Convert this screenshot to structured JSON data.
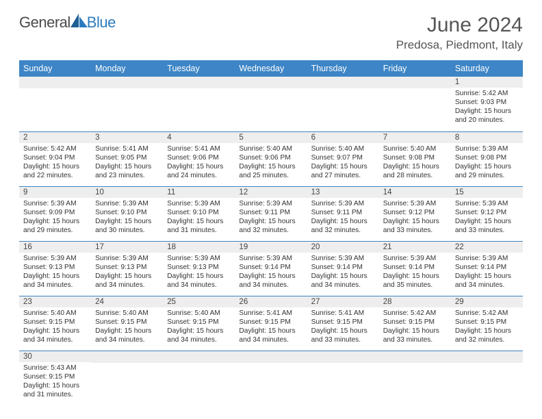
{
  "brand": {
    "name1": "General",
    "name2": "Blue"
  },
  "title": "June 2024",
  "location": "Predosa, Piedmont, Italy",
  "colors": {
    "header_bg": "#3d85c6",
    "daynum_bg": "#eeeeee",
    "row_border": "#3d85c6",
    "brand_blue": "#2b7bbf"
  },
  "weekdays": [
    "Sunday",
    "Monday",
    "Tuesday",
    "Wednesday",
    "Thursday",
    "Friday",
    "Saturday"
  ],
  "weeks": [
    [
      null,
      null,
      null,
      null,
      null,
      null,
      {
        "d": "1",
        "sr": "5:42 AM",
        "ss": "9:03 PM",
        "dl": "15 hours and 20 minutes."
      }
    ],
    [
      {
        "d": "2",
        "sr": "5:42 AM",
        "ss": "9:04 PM",
        "dl": "15 hours and 22 minutes."
      },
      {
        "d": "3",
        "sr": "5:41 AM",
        "ss": "9:05 PM",
        "dl": "15 hours and 23 minutes."
      },
      {
        "d": "4",
        "sr": "5:41 AM",
        "ss": "9:06 PM",
        "dl": "15 hours and 24 minutes."
      },
      {
        "d": "5",
        "sr": "5:40 AM",
        "ss": "9:06 PM",
        "dl": "15 hours and 25 minutes."
      },
      {
        "d": "6",
        "sr": "5:40 AM",
        "ss": "9:07 PM",
        "dl": "15 hours and 27 minutes."
      },
      {
        "d": "7",
        "sr": "5:40 AM",
        "ss": "9:08 PM",
        "dl": "15 hours and 28 minutes."
      },
      {
        "d": "8",
        "sr": "5:39 AM",
        "ss": "9:08 PM",
        "dl": "15 hours and 29 minutes."
      }
    ],
    [
      {
        "d": "9",
        "sr": "5:39 AM",
        "ss": "9:09 PM",
        "dl": "15 hours and 29 minutes."
      },
      {
        "d": "10",
        "sr": "5:39 AM",
        "ss": "9:10 PM",
        "dl": "15 hours and 30 minutes."
      },
      {
        "d": "11",
        "sr": "5:39 AM",
        "ss": "9:10 PM",
        "dl": "15 hours and 31 minutes."
      },
      {
        "d": "12",
        "sr": "5:39 AM",
        "ss": "9:11 PM",
        "dl": "15 hours and 32 minutes."
      },
      {
        "d": "13",
        "sr": "5:39 AM",
        "ss": "9:11 PM",
        "dl": "15 hours and 32 minutes."
      },
      {
        "d": "14",
        "sr": "5:39 AM",
        "ss": "9:12 PM",
        "dl": "15 hours and 33 minutes."
      },
      {
        "d": "15",
        "sr": "5:39 AM",
        "ss": "9:12 PM",
        "dl": "15 hours and 33 minutes."
      }
    ],
    [
      {
        "d": "16",
        "sr": "5:39 AM",
        "ss": "9:13 PM",
        "dl": "15 hours and 34 minutes."
      },
      {
        "d": "17",
        "sr": "5:39 AM",
        "ss": "9:13 PM",
        "dl": "15 hours and 34 minutes."
      },
      {
        "d": "18",
        "sr": "5:39 AM",
        "ss": "9:13 PM",
        "dl": "15 hours and 34 minutes."
      },
      {
        "d": "19",
        "sr": "5:39 AM",
        "ss": "9:14 PM",
        "dl": "15 hours and 34 minutes."
      },
      {
        "d": "20",
        "sr": "5:39 AM",
        "ss": "9:14 PM",
        "dl": "15 hours and 34 minutes."
      },
      {
        "d": "21",
        "sr": "5:39 AM",
        "ss": "9:14 PM",
        "dl": "15 hours and 35 minutes."
      },
      {
        "d": "22",
        "sr": "5:39 AM",
        "ss": "9:14 PM",
        "dl": "15 hours and 34 minutes."
      }
    ],
    [
      {
        "d": "23",
        "sr": "5:40 AM",
        "ss": "9:15 PM",
        "dl": "15 hours and 34 minutes."
      },
      {
        "d": "24",
        "sr": "5:40 AM",
        "ss": "9:15 PM",
        "dl": "15 hours and 34 minutes."
      },
      {
        "d": "25",
        "sr": "5:40 AM",
        "ss": "9:15 PM",
        "dl": "15 hours and 34 minutes."
      },
      {
        "d": "26",
        "sr": "5:41 AM",
        "ss": "9:15 PM",
        "dl": "15 hours and 34 minutes."
      },
      {
        "d": "27",
        "sr": "5:41 AM",
        "ss": "9:15 PM",
        "dl": "15 hours and 33 minutes."
      },
      {
        "d": "28",
        "sr": "5:42 AM",
        "ss": "9:15 PM",
        "dl": "15 hours and 33 minutes."
      },
      {
        "d": "29",
        "sr": "5:42 AM",
        "ss": "9:15 PM",
        "dl": "15 hours and 32 minutes."
      }
    ],
    [
      {
        "d": "30",
        "sr": "5:43 AM",
        "ss": "9:15 PM",
        "dl": "15 hours and 31 minutes."
      },
      null,
      null,
      null,
      null,
      null,
      null
    ]
  ],
  "labels": {
    "sunrise": "Sunrise: ",
    "sunset": "Sunset: ",
    "daylight": "Daylight: "
  }
}
